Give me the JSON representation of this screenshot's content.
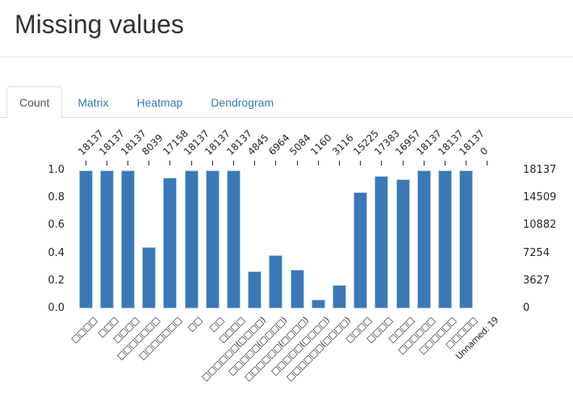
{
  "header": {
    "title": "Missing values"
  },
  "tabs": [
    {
      "label": "Count",
      "active": true
    },
    {
      "label": "Matrix",
      "active": false
    },
    {
      "label": "Heatmap",
      "active": false
    },
    {
      "label": "Dendrogram",
      "active": false
    }
  ],
  "chart_data": {
    "type": "bar",
    "title": "",
    "categories": [
      "□□□□",
      "□□□",
      "□□□□",
      "□□□□□□□",
      "□□□□□□□",
      "□□",
      "□□",
      "□□□□",
      "□□□□□□(□□□□)",
      "□□□□□(□□□□)",
      "□□□□□□(□□□□)",
      "□□□□□(□□□□)",
      "□□□□□□(□□□□)",
      "□□□□",
      "□□□□",
      "□□□□",
      "□□□□□□",
      "□□□□□□",
      "□□□□□",
      "Unnamed: 19"
    ],
    "values": [
      18137,
      18137,
      18137,
      8039,
      17158,
      18137,
      18137,
      18137,
      4845,
      6964,
      5084,
      1160,
      3116,
      15225,
      17383,
      16957,
      18137,
      18137,
      18137,
      0
    ],
    "total_rows": 18137,
    "ylim": [
      0,
      1
    ],
    "left_axis_ticks": [
      "0.0",
      "0.2",
      "0.4",
      "0.6",
      "0.8",
      "1.0"
    ],
    "right_axis_ticks": [
      "0",
      "3627",
      "7254",
      "10882",
      "14509",
      "18137"
    ],
    "bar_color": "#3a79b5",
    "legend": "none",
    "grid": "off"
  }
}
